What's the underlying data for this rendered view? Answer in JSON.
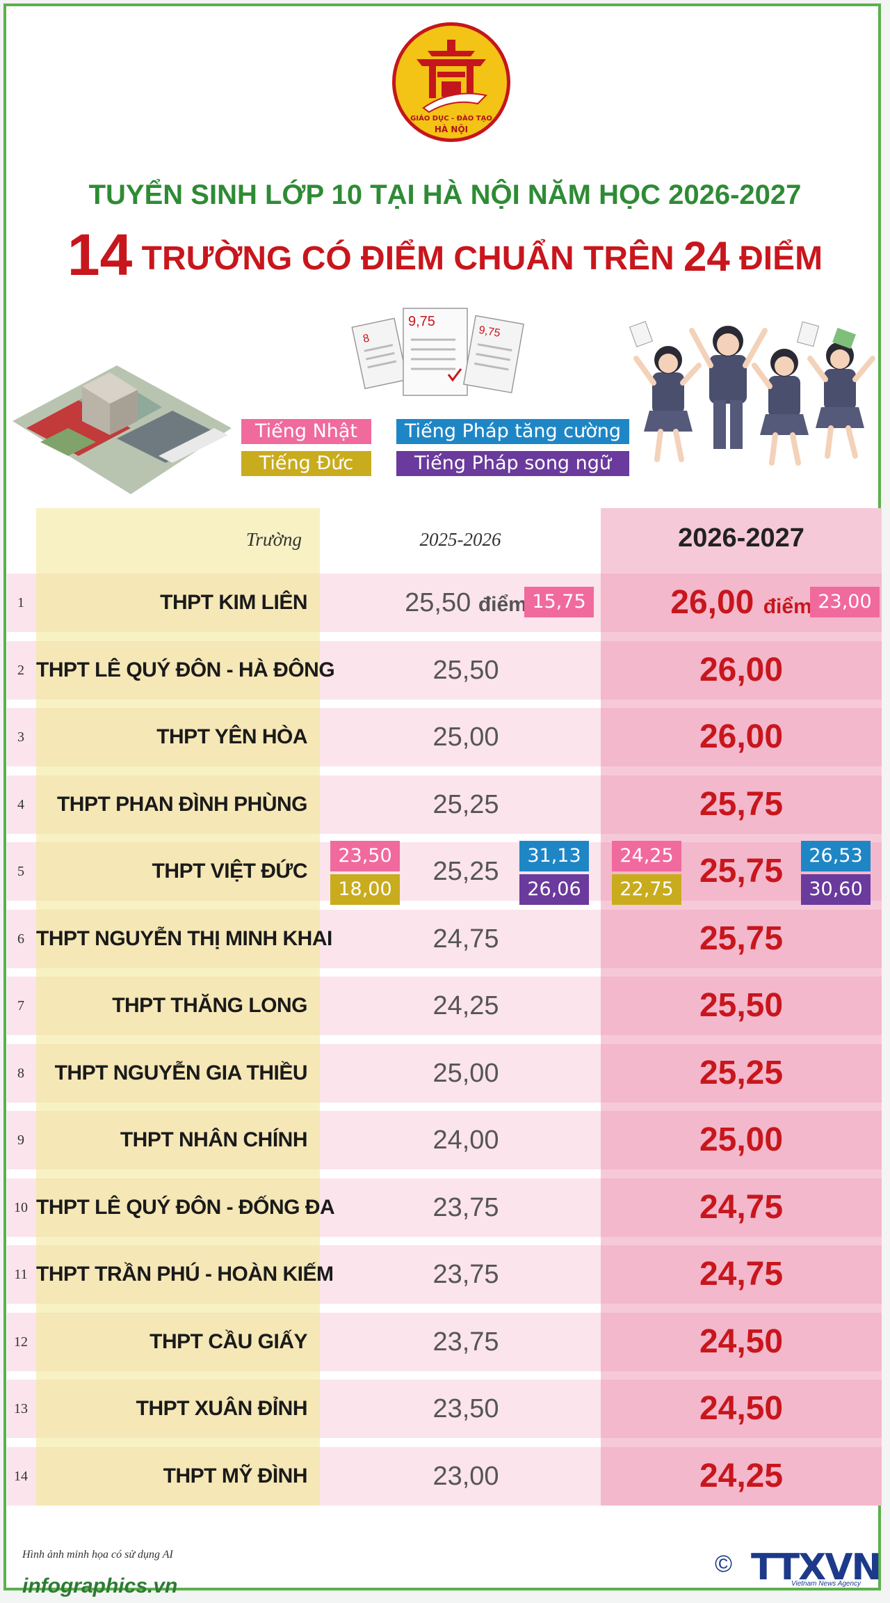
{
  "logo": {
    "line1": "GIÁO DỤC - ĐÀO TẠO",
    "line2": "HÀ NỘI"
  },
  "title": {
    "line1": "TUYỂN SINH LỚP 10 TẠI HÀ NỘI NĂM HỌC 2026-2027",
    "count": "14",
    "middle": " TRƯỜNG CÓ ĐIỂM CHUẨN TRÊN ",
    "score": "24",
    "end": " ĐIỂM"
  },
  "legend": {
    "japanese": "Tiếng Nhật",
    "french_enhanced": "Tiếng Pháp tăng cường",
    "german": "Tiếng Đức",
    "french_bilingual": "Tiếng Pháp song ngữ"
  },
  "colors": {
    "pink": "#f06a9e",
    "blue": "#1f86c6",
    "yellow": "#c9ac1e",
    "purple": "#6a3a9c",
    "red": "#c8161d",
    "green": "#2e8b35"
  },
  "table": {
    "header_school": "Trường",
    "header_old": "2025-2026",
    "header_new": "2026-2027",
    "unit": "điểm",
    "rows": [
      {
        "num": "1",
        "school": "THPT KIM LIÊN",
        "old": "25,50",
        "new": "26,00",
        "old_tag_pink": "15,75",
        "new_tag_pink": "23,00"
      },
      {
        "num": "2",
        "school": "THPT LÊ QUÝ ĐÔN - HÀ ĐÔNG",
        "old": "25,50",
        "new": "26,00"
      },
      {
        "num": "3",
        "school": "THPT YÊN HÒA",
        "old": "25,00",
        "new": "26,00"
      },
      {
        "num": "4",
        "school": "THPT PHAN ĐÌNH PHÙNG",
        "old": "25,25",
        "new": "25,75"
      },
      {
        "num": "5",
        "school": "THPT VIỆT ĐỨC",
        "old": "25,25",
        "new": "25,75",
        "old_tags": {
          "pink": "23,50",
          "yellow": "18,00",
          "blue": "31,13",
          "purple": "26,06"
        },
        "new_tags": {
          "pink": "24,25",
          "yellow": "22,75",
          "blue": "26,53",
          "purple": "30,60"
        }
      },
      {
        "num": "6",
        "school": "THPT NGUYỄN THỊ MINH KHAI",
        "old": "24,75",
        "new": "25,75"
      },
      {
        "num": "7",
        "school": "THPT THĂNG LONG",
        "old": "24,25",
        "new": "25,50"
      },
      {
        "num": "8",
        "school": "THPT NGUYỄN GIA THIỀU",
        "old": "25,00",
        "new": "25,25"
      },
      {
        "num": "9",
        "school": "THPT NHÂN CHÍNH",
        "old": "24,00",
        "new": "25,00"
      },
      {
        "num": "10",
        "school": "THPT LÊ QUÝ ĐÔN - ĐỐNG ĐA",
        "old": "23,75",
        "new": "24,75"
      },
      {
        "num": "11",
        "school": "THPT TRẦN PHÚ - HOÀN KIẾM",
        "old": "23,75",
        "new": "24,75"
      },
      {
        "num": "12",
        "school": "THPT CẦU GIẤY",
        "old": "23,75",
        "new": "24,50"
      },
      {
        "num": "13",
        "school": "THPT XUÂN ĐỈNH",
        "old": "23,50",
        "new": "24,50"
      },
      {
        "num": "14",
        "school": "THPT MỸ ĐÌNH",
        "old": "23,00",
        "new": "24,25"
      }
    ]
  },
  "illustrations": {
    "papers_scores": [
      "8",
      "9,75",
      "9,75"
    ]
  },
  "footer": {
    "note": "Hình ảnh minh họa có sử dụng AI",
    "site": "infographics.vn",
    "copyright": "©",
    "brand": "TTXVN",
    "brand_sub": "Vietnam News Agency"
  }
}
